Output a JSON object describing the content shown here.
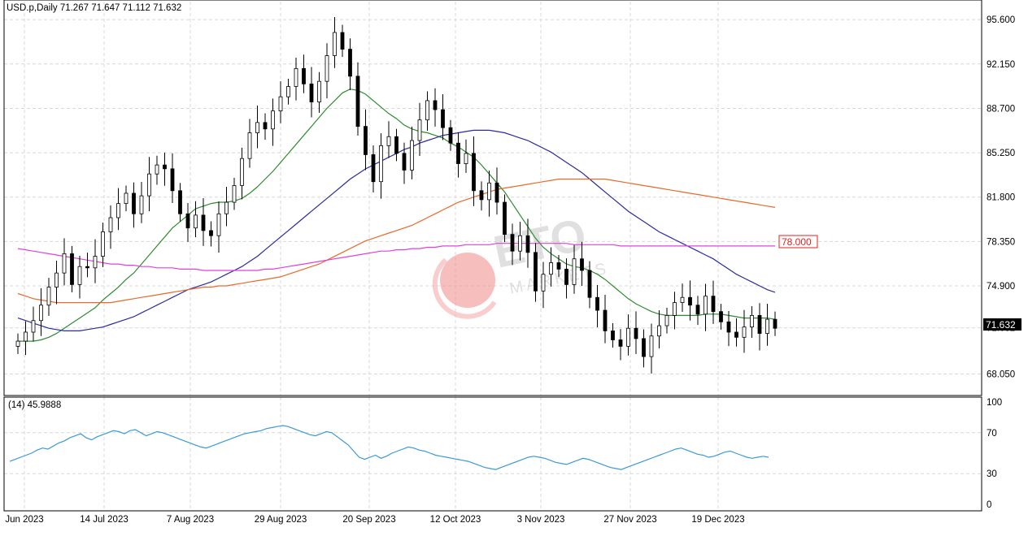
{
  "header": {
    "symbol_line": "USD.p,Daily  71.267 71.647 71.112 71.632",
    "rsi_line": "(14) 45.9888"
  },
  "price_axis": {
    "ticks": [
      "95.600",
      "92.150",
      "88.700",
      "85.250",
      "81.800",
      "78.350",
      "74.900",
      "71.632",
      "68.050"
    ],
    "current_price": "71.632",
    "level_label": "78.000"
  },
  "rsi_axis": {
    "ticks": [
      "100",
      "70",
      "30",
      "0"
    ]
  },
  "time_axis": {
    "labels": [
      "Jun 2023",
      "14 Jul 2023",
      "7 Aug 2023",
      "29 Aug 2023",
      "20 Sep 2023",
      "12 Oct 2023",
      "3 Nov 2023",
      "27 Nov 2023",
      "19 Dec 2023"
    ]
  },
  "watermark": {
    "brand": "ETO",
    "sub": "MARKETS"
  },
  "colors": {
    "bull_candle": "#ffffff",
    "bear_candle": "#000000",
    "ma_short": "#2e8b2e",
    "ma_mid": "#2a2aa0",
    "ma_long": "#e86a2a",
    "ma_magenta": "#e040e0",
    "rsi_line": "#3a9ad9",
    "level_box": "#e02020"
  },
  "chart_data": [
    {
      "type": "candlestick",
      "title": "USD.p,Daily",
      "ohlc_last": {
        "open": 71.267,
        "high": 71.647,
        "low": 71.112,
        "close": 71.632
      },
      "y_ticks": [
        68.05,
        71.632,
        74.9,
        78.35,
        81.8,
        85.25,
        88.7,
        92.15,
        95.6
      ],
      "ylim": [
        66.5,
        97.0
      ],
      "x_labels": [
        "Jun 2023",
        "14 Jul 2023",
        "7 Aug 2023",
        "29 Aug 2023",
        "20 Sep 2023",
        "12 Oct 2023",
        "3 Nov 2023",
        "27 Nov 2023",
        "19 Dec 2023"
      ],
      "horizontal_level": 78.0,
      "grid": true,
      "close_series": [
        70.6,
        71.3,
        72.2,
        73.4,
        74.8,
        75.9,
        77.4,
        75.0,
        76.4,
        76.3,
        77.2,
        79.1,
        80.2,
        81.3,
        82.1,
        80.5,
        81.9,
        83.6,
        84.3,
        84.0,
        82.3,
        80.5,
        79.4,
        80.4,
        79.2,
        78.8,
        80.5,
        81.4,
        82.7,
        84.8,
        86.8,
        87.6,
        87.1,
        88.5,
        89.6,
        90.4,
        91.8,
        90.6,
        89.2,
        90.8,
        92.8,
        94.6,
        93.3,
        91.2,
        87.3,
        85.1,
        83.0,
        85.8,
        86.5,
        85.2,
        83.9,
        86.2,
        87.8,
        89.3,
        88.6,
        87.2,
        86.0,
        84.4,
        85.2,
        82.3,
        81.6,
        82.9,
        81.4,
        78.9,
        77.6,
        78.8,
        77.5,
        74.5,
        75.8,
        76.7,
        76.2,
        75.0,
        77.0,
        76.1,
        74.0,
        73.0,
        71.4,
        70.7,
        70.2,
        71.6,
        70.8,
        69.4,
        71.0,
        71.8,
        72.6,
        73.6,
        74.0,
        73.4,
        72.7,
        74.1,
        72.9,
        72.1,
        71.3,
        70.9,
        71.7,
        72.6,
        71.2,
        72.3,
        71.6
      ],
      "series": [
        {
          "values_ref": "close_series"
        },
        {
          "values": [
            70.6,
            70.6,
            70.6,
            70.7,
            70.9,
            71.2,
            71.6,
            72.0,
            72.4,
            72.8,
            73.2,
            73.8,
            74.3,
            74.8,
            75.4,
            75.9,
            76.6,
            77.3,
            78.0,
            78.7,
            79.4,
            79.9,
            80.4,
            80.9,
            81.1,
            81.3,
            81.4,
            81.4,
            81.5,
            81.7,
            82.1,
            82.6,
            83.2,
            83.8,
            84.5,
            85.2,
            85.9,
            86.6,
            87.3,
            88.0,
            88.7,
            89.3,
            89.9,
            90.2,
            90.1,
            89.8,
            89.3,
            88.8,
            88.3,
            87.9,
            87.4,
            87.1,
            86.9,
            86.8,
            86.6,
            86.4,
            86.0,
            85.7,
            85.3,
            84.9,
            84.3,
            83.6,
            82.9,
            82.2,
            81.3,
            80.4,
            79.5,
            78.6,
            77.9,
            77.4,
            77.0,
            76.6,
            76.4,
            76.3,
            76.1,
            75.8,
            75.4,
            74.9,
            74.4,
            73.9,
            73.5,
            73.2,
            72.9,
            72.7,
            72.6,
            72.6,
            72.6,
            72.6,
            72.6,
            72.7,
            72.7,
            72.7,
            72.6,
            72.5,
            72.4,
            72.4,
            72.4,
            72.4,
            72.3
          ]
        },
        {
          "values": [
            72.4,
            72.2,
            72.0,
            71.8,
            71.6,
            71.5,
            71.4,
            71.4,
            71.4,
            71.5,
            71.6,
            71.7,
            71.9,
            72.1,
            72.3,
            72.5,
            72.8,
            73.1,
            73.4,
            73.7,
            74.0,
            74.3,
            74.6,
            74.8,
            75.0,
            75.2,
            75.5,
            75.8,
            76.1,
            76.4,
            76.8,
            77.2,
            77.7,
            78.2,
            78.7,
            79.2,
            79.7,
            80.2,
            80.7,
            81.2,
            81.7,
            82.2,
            82.7,
            83.2,
            83.6,
            84.0,
            84.3,
            84.6,
            84.9,
            85.2,
            85.5,
            85.7,
            86.0,
            86.2,
            86.4,
            86.6,
            86.7,
            86.8,
            86.9,
            87.0,
            87.0,
            87.0,
            86.9,
            86.8,
            86.6,
            86.4,
            86.2,
            85.9,
            85.6,
            85.3,
            84.9,
            84.5,
            84.1,
            83.7,
            83.2,
            82.7,
            82.2,
            81.7,
            81.2,
            80.7,
            80.3,
            79.9,
            79.5,
            79.1,
            78.8,
            78.5,
            78.2,
            77.9,
            77.6,
            77.3,
            77.0,
            76.6,
            76.2,
            75.8,
            75.5,
            75.2,
            74.9,
            74.6,
            74.4
          ]
        },
        {
          "values": [
            74.3,
            74.1,
            73.9,
            73.8,
            73.7,
            73.6,
            73.6,
            73.6,
            73.6,
            73.6,
            73.6,
            73.6,
            73.6,
            73.7,
            73.8,
            73.9,
            74.0,
            74.1,
            74.2,
            74.3,
            74.4,
            74.5,
            74.6,
            74.7,
            74.8,
            74.8,
            74.9,
            74.9,
            75.0,
            75.1,
            75.2,
            75.3,
            75.4,
            75.5,
            75.6,
            75.8,
            76.0,
            76.2,
            76.4,
            76.6,
            76.9,
            77.2,
            77.5,
            77.8,
            78.1,
            78.4,
            78.6,
            78.8,
            79.0,
            79.2,
            79.4,
            79.6,
            79.9,
            80.2,
            80.5,
            80.8,
            81.1,
            81.4,
            81.6,
            81.8,
            82.0,
            82.2,
            82.4,
            82.5,
            82.6,
            82.7,
            82.8,
            82.9,
            83.0,
            83.1,
            83.2,
            83.2,
            83.2,
            83.2,
            83.2,
            83.2,
            83.2,
            83.1,
            83.0,
            82.9,
            82.8,
            82.7,
            82.6,
            82.5,
            82.4,
            82.3,
            82.2,
            82.1,
            82.0,
            81.9,
            81.8,
            81.7,
            81.6,
            81.5,
            81.4,
            81.3,
            81.2,
            81.1,
            81.0
          ]
        },
        {
          "values": [
            77.8,
            77.7,
            77.6,
            77.5,
            77.4,
            77.3,
            77.2,
            77.1,
            77.0,
            76.9,
            76.8,
            76.7,
            76.6,
            76.6,
            76.5,
            76.5,
            76.4,
            76.4,
            76.3,
            76.3,
            76.3,
            76.2,
            76.2,
            76.2,
            76.1,
            76.1,
            76.1,
            76.1,
            76.1,
            76.1,
            76.1,
            76.1,
            76.2,
            76.2,
            76.3,
            76.4,
            76.5,
            76.6,
            76.7,
            76.8,
            76.9,
            77.0,
            77.1,
            77.2,
            77.3,
            77.4,
            77.5,
            77.6,
            77.6,
            77.7,
            77.7,
            77.8,
            77.8,
            77.9,
            77.9,
            78.0,
            78.0,
            78.0,
            78.1,
            78.1,
            78.1,
            78.1,
            78.2,
            78.2,
            78.2,
            78.2,
            78.2,
            78.2,
            78.2,
            78.2,
            78.2,
            78.2,
            78.1,
            78.1,
            78.1,
            78.1,
            78.1,
            78.1,
            78.0,
            78.0,
            78.0,
            78.0,
            78.0,
            78.0,
            78.0,
            78.0,
            78.0,
            78.0,
            78.0,
            78.0,
            78.0,
            78.0,
            78.0,
            78.0,
            78.0,
            78.0,
            78.0,
            78.0,
            78.0
          ]
        }
      ]
    },
    {
      "type": "line",
      "title": "(14) 45.9888",
      "y_ticks": [
        0,
        30,
        70,
        100
      ],
      "ylim": [
        0,
        100
      ],
      "grid": true,
      "series": [
        {
          "values": [
            42,
            44,
            46,
            48,
            50,
            53,
            55,
            54,
            57,
            60,
            62,
            65,
            67,
            69,
            65,
            63,
            66,
            68,
            70,
            72,
            71,
            69,
            72,
            73,
            70,
            67,
            69,
            71,
            70,
            68,
            66,
            64,
            62,
            60,
            58,
            56,
            55,
            57,
            59,
            61,
            63,
            65,
            67,
            69,
            70,
            71,
            72,
            74,
            75,
            76,
            77,
            76,
            74,
            72,
            70,
            68,
            67,
            69,
            71,
            70,
            66,
            62,
            58,
            52,
            46,
            44,
            46,
            48,
            45,
            47,
            50,
            52,
            54,
            56,
            55,
            53,
            52,
            50,
            48,
            47,
            46,
            45,
            44,
            43,
            42,
            40,
            38,
            36,
            35,
            34,
            36,
            38,
            40,
            42,
            44,
            46,
            47,
            46,
            45,
            43,
            41,
            40,
            39,
            41,
            43,
            45,
            44,
            42,
            40,
            38,
            36,
            35,
            34,
            36,
            38,
            40,
            42,
            44,
            46,
            48,
            50,
            52,
            54,
            55,
            53,
            51,
            49,
            48,
            46,
            47,
            49,
            51,
            52,
            50,
            48,
            46,
            45,
            46,
            47,
            46
          ]
        }
      ]
    }
  ]
}
